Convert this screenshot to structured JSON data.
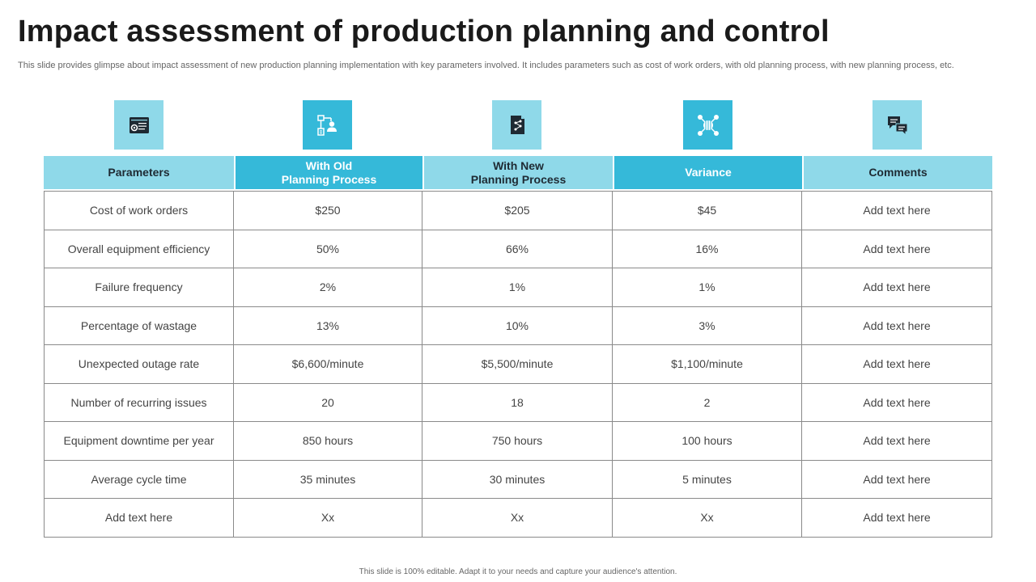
{
  "title": "Impact assessment of production planning and control",
  "subtitle": "This slide provides glimpse about impact assessment of new production planning implementation with key parameters involved. It includes parameters such as cost of work orders, with old planning process, with new planning process, etc.",
  "icons": [
    "dashboard-settings-icon",
    "process-flow-user-icon",
    "document-network-icon",
    "globe-network-icon",
    "chat-bubbles-icon"
  ],
  "colors": {
    "light": "#8fd9e9",
    "dark": "#35b9d9"
  },
  "table": {
    "headers": [
      "Parameters",
      "With Old\nPlanning Process",
      "With New\nPlanning Process",
      "Variance",
      "Comments"
    ],
    "rows": [
      [
        "Cost of work orders",
        "$250",
        "$205",
        "$45",
        "Add text here"
      ],
      [
        "Overall equipment efficiency",
        "50%",
        "66%",
        "16%",
        "Add text here"
      ],
      [
        "Failure frequency",
        "2%",
        "1%",
        "1%",
        "Add text here"
      ],
      [
        "Percentage of wastage",
        "13%",
        "10%",
        "3%",
        "Add text here"
      ],
      [
        "Unexpected outage rate",
        "$6,600/minute",
        "$5,500/minute",
        "$1,100/minute",
        "Add text here"
      ],
      [
        "Number of recurring issues",
        "20",
        "18",
        "2",
        "Add text here"
      ],
      [
        "Equipment downtime per year",
        "850 hours",
        "750 hours",
        "100 hours",
        "Add text here"
      ],
      [
        "Average cycle time",
        "35 minutes",
        "30 minutes",
        "5 minutes",
        "Add text here"
      ],
      [
        "Add text here",
        "Xx",
        "Xx",
        "Xx",
        "Add text here"
      ]
    ]
  },
  "footer": "This slide is 100% editable. Adapt it to your needs and capture your audience's attention."
}
